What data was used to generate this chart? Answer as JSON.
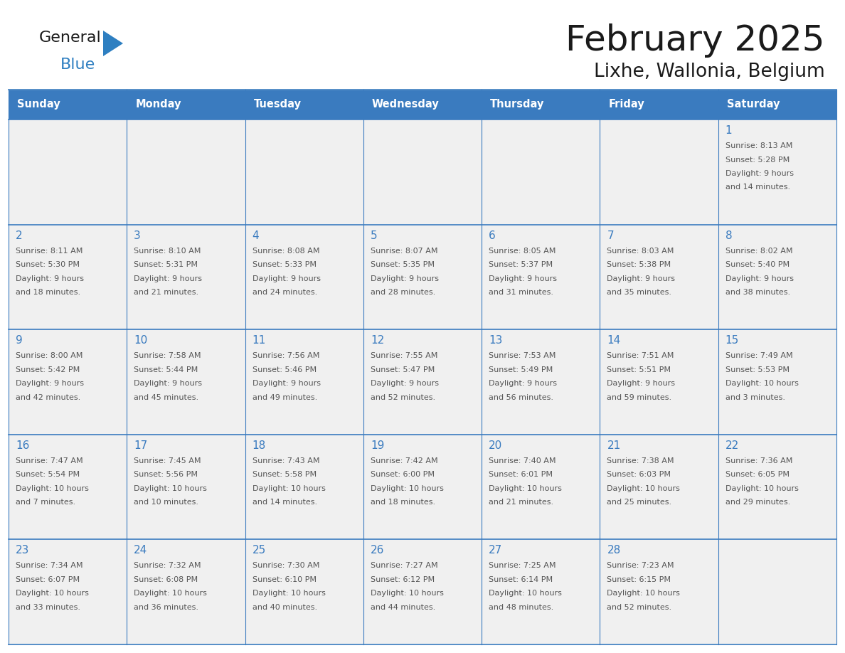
{
  "title": "February 2025",
  "subtitle": "Lixhe, Wallonia, Belgium",
  "days_of_week": [
    "Sunday",
    "Monday",
    "Tuesday",
    "Wednesday",
    "Thursday",
    "Friday",
    "Saturday"
  ],
  "header_bg": "#3a7bbf",
  "header_text": "#ffffff",
  "cell_bg": "#f0f0f0",
  "cell_white_bg": "#ffffff",
  "border_color": "#3a7bbf",
  "day_number_color": "#3a7bbf",
  "text_color": "#555555",
  "title_color": "#1a1a1a",
  "logo_general_color": "#1a1a1a",
  "logo_blue_color": "#2e7fc1",
  "calendar_data": [
    [
      null,
      null,
      null,
      null,
      null,
      null,
      1
    ],
    [
      2,
      3,
      4,
      5,
      6,
      7,
      8
    ],
    [
      9,
      10,
      11,
      12,
      13,
      14,
      15
    ],
    [
      16,
      17,
      18,
      19,
      20,
      21,
      22
    ],
    [
      23,
      24,
      25,
      26,
      27,
      28,
      null
    ]
  ],
  "sunrise_sunset": {
    "1": {
      "sunrise": "8:13 AM",
      "sunset": "5:28 PM",
      "daylight_h": "9 hours",
      "daylight_m": "and 14 minutes."
    },
    "2": {
      "sunrise": "8:11 AM",
      "sunset": "5:30 PM",
      "daylight_h": "9 hours",
      "daylight_m": "and 18 minutes."
    },
    "3": {
      "sunrise": "8:10 AM",
      "sunset": "5:31 PM",
      "daylight_h": "9 hours",
      "daylight_m": "and 21 minutes."
    },
    "4": {
      "sunrise": "8:08 AM",
      "sunset": "5:33 PM",
      "daylight_h": "9 hours",
      "daylight_m": "and 24 minutes."
    },
    "5": {
      "sunrise": "8:07 AM",
      "sunset": "5:35 PM",
      "daylight_h": "9 hours",
      "daylight_m": "and 28 minutes."
    },
    "6": {
      "sunrise": "8:05 AM",
      "sunset": "5:37 PM",
      "daylight_h": "9 hours",
      "daylight_m": "and 31 minutes."
    },
    "7": {
      "sunrise": "8:03 AM",
      "sunset": "5:38 PM",
      "daylight_h": "9 hours",
      "daylight_m": "and 35 minutes."
    },
    "8": {
      "sunrise": "8:02 AM",
      "sunset": "5:40 PM",
      "daylight_h": "9 hours",
      "daylight_m": "and 38 minutes."
    },
    "9": {
      "sunrise": "8:00 AM",
      "sunset": "5:42 PM",
      "daylight_h": "9 hours",
      "daylight_m": "and 42 minutes."
    },
    "10": {
      "sunrise": "7:58 AM",
      "sunset": "5:44 PM",
      "daylight_h": "9 hours",
      "daylight_m": "and 45 minutes."
    },
    "11": {
      "sunrise": "7:56 AM",
      "sunset": "5:46 PM",
      "daylight_h": "9 hours",
      "daylight_m": "and 49 minutes."
    },
    "12": {
      "sunrise": "7:55 AM",
      "sunset": "5:47 PM",
      "daylight_h": "9 hours",
      "daylight_m": "and 52 minutes."
    },
    "13": {
      "sunrise": "7:53 AM",
      "sunset": "5:49 PM",
      "daylight_h": "9 hours",
      "daylight_m": "and 56 minutes."
    },
    "14": {
      "sunrise": "7:51 AM",
      "sunset": "5:51 PM",
      "daylight_h": "9 hours",
      "daylight_m": "and 59 minutes."
    },
    "15": {
      "sunrise": "7:49 AM",
      "sunset": "5:53 PM",
      "daylight_h": "10 hours",
      "daylight_m": "and 3 minutes."
    },
    "16": {
      "sunrise": "7:47 AM",
      "sunset": "5:54 PM",
      "daylight_h": "10 hours",
      "daylight_m": "and 7 minutes."
    },
    "17": {
      "sunrise": "7:45 AM",
      "sunset": "5:56 PM",
      "daylight_h": "10 hours",
      "daylight_m": "and 10 minutes."
    },
    "18": {
      "sunrise": "7:43 AM",
      "sunset": "5:58 PM",
      "daylight_h": "10 hours",
      "daylight_m": "and 14 minutes."
    },
    "19": {
      "sunrise": "7:42 AM",
      "sunset": "6:00 PM",
      "daylight_h": "10 hours",
      "daylight_m": "and 18 minutes."
    },
    "20": {
      "sunrise": "7:40 AM",
      "sunset": "6:01 PM",
      "daylight_h": "10 hours",
      "daylight_m": "and 21 minutes."
    },
    "21": {
      "sunrise": "7:38 AM",
      "sunset": "6:03 PM",
      "daylight_h": "10 hours",
      "daylight_m": "and 25 minutes."
    },
    "22": {
      "sunrise": "7:36 AM",
      "sunset": "6:05 PM",
      "daylight_h": "10 hours",
      "daylight_m": "and 29 minutes."
    },
    "23": {
      "sunrise": "7:34 AM",
      "sunset": "6:07 PM",
      "daylight_h": "10 hours",
      "daylight_m": "and 33 minutes."
    },
    "24": {
      "sunrise": "7:32 AM",
      "sunset": "6:08 PM",
      "daylight_h": "10 hours",
      "daylight_m": "and 36 minutes."
    },
    "25": {
      "sunrise": "7:30 AM",
      "sunset": "6:10 PM",
      "daylight_h": "10 hours",
      "daylight_m": "and 40 minutes."
    },
    "26": {
      "sunrise": "7:27 AM",
      "sunset": "6:12 PM",
      "daylight_h": "10 hours",
      "daylight_m": "and 44 minutes."
    },
    "27": {
      "sunrise": "7:25 AM",
      "sunset": "6:14 PM",
      "daylight_h": "10 hours",
      "daylight_m": "and 48 minutes."
    },
    "28": {
      "sunrise": "7:23 AM",
      "sunset": "6:15 PM",
      "daylight_h": "10 hours",
      "daylight_m": "and 52 minutes."
    }
  }
}
